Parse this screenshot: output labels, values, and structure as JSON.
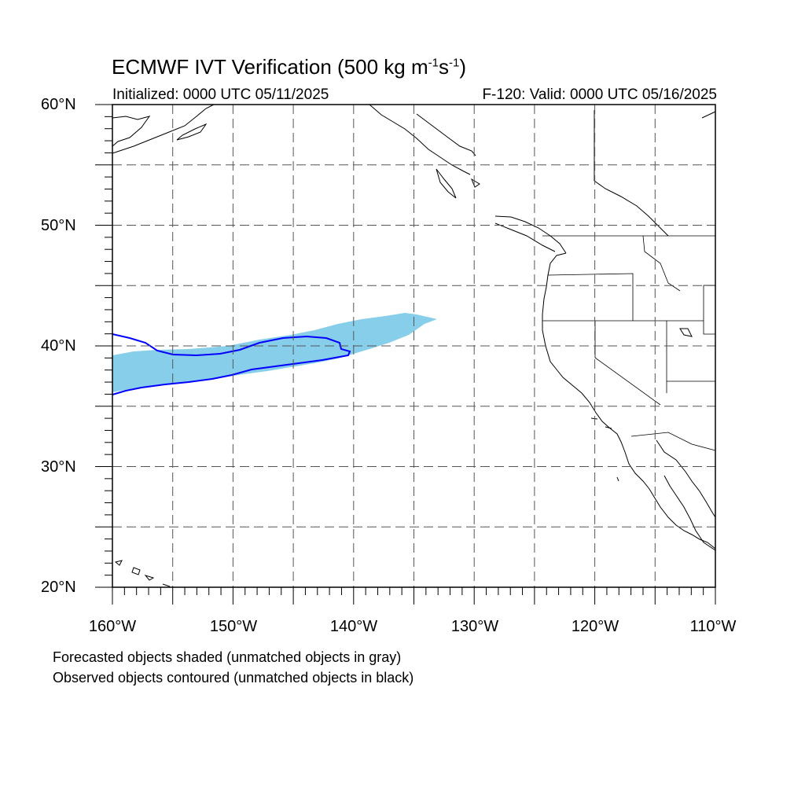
{
  "title": {
    "prefix": "ECMWF IVT Verification (500 kg m",
    "sup1": "-1",
    "mid": "s",
    "sup2": "-1",
    "suffix": ")"
  },
  "subtitle_left": "Initialized: 0000 UTC 05/11/2025",
  "subtitle_right": "F-120: Valid: 0000 UTC 05/16/2025",
  "lat_labels": [
    "60°N",
    "50°N",
    "40°N",
    "30°N",
    "20°N"
  ],
  "lon_labels": [
    "160°W",
    "150°W",
    "140°W",
    "130°W",
    "120°W",
    "110°W"
  ],
  "notes": [
    "Forecasted objects shaded (unmatched objects in gray)",
    "Observed objects contoured (unmatched objects in black)"
  ],
  "colors": {
    "forecast_fill": "#87ceeb",
    "observed_contour": "#0000ff",
    "coastline": "#000000",
    "grid": "#555555"
  },
  "map_extent": {
    "lon_min": -160,
    "lon_max": -110,
    "lat_min": 20,
    "lat_max": 60
  }
}
